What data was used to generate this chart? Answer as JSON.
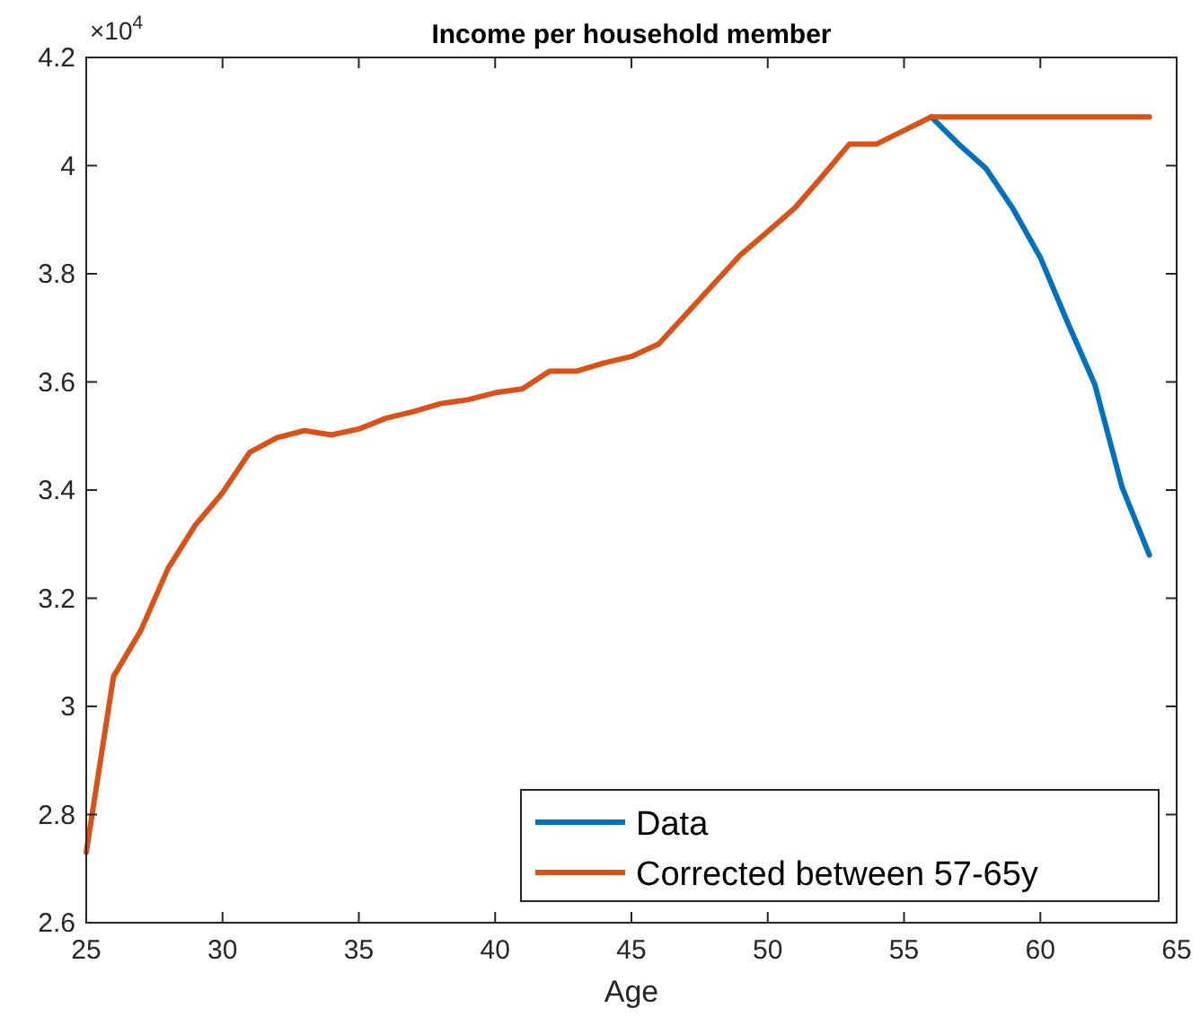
{
  "chart_data": {
    "type": "line",
    "title": "Income per household member",
    "xlabel": "Age",
    "annotations": [
      "×10$^{4}$"
    ],
    "x": [
      25,
      26,
      27,
      28,
      29,
      30,
      31,
      32,
      33,
      34,
      35,
      36,
      37,
      38,
      39,
      40,
      41,
      42,
      43,
      44,
      45,
      46,
      47,
      48,
      49,
      50,
      51,
      52,
      53,
      54,
      55,
      56,
      57,
      58,
      59,
      60,
      61,
      62,
      63,
      64
    ],
    "series": [
      {
        "name": "Data",
        "color": "#0072bd",
        "values": [
          null,
          null,
          null,
          null,
          null,
          null,
          null,
          null,
          null,
          null,
          null,
          null,
          null,
          null,
          null,
          null,
          null,
          null,
          null,
          null,
          null,
          null,
          null,
          null,
          null,
          null,
          null,
          null,
          null,
          null,
          null,
          4.09,
          4.04,
          3.995,
          3.92,
          3.83,
          3.71,
          3.595,
          3.405,
          3.28
        ]
      },
      {
        "name": "Corrected between 57-65y",
        "color": "#d95319",
        "values": [
          2.73,
          3.055,
          3.14,
          3.255,
          3.335,
          3.395,
          3.47,
          3.497,
          3.51,
          3.502,
          3.513,
          3.533,
          3.545,
          3.56,
          3.567,
          3.58,
          3.587,
          3.62,
          3.62,
          3.635,
          3.647,
          3.67,
          3.725,
          3.78,
          3.835,
          3.878,
          3.922,
          3.98,
          4.04,
          4.04,
          4.065,
          4.09,
          4.09,
          4.09,
          4.09,
          4.09,
          4.09,
          4.09,
          4.09,
          4.09
        ]
      }
    ],
    "xlim": [
      25,
      65
    ],
    "xticks": [
      25,
      30,
      35,
      40,
      45,
      50,
      55,
      60,
      65
    ],
    "ylim": [
      2.6,
      4.2
    ],
    "yticks": [
      2.6,
      2.8,
      3,
      3.2,
      3.4,
      3.6,
      3.8,
      4,
      4.2
    ],
    "grid": false,
    "legend": "bottom right",
    "marker": "none",
    "line_style": "solid"
  }
}
